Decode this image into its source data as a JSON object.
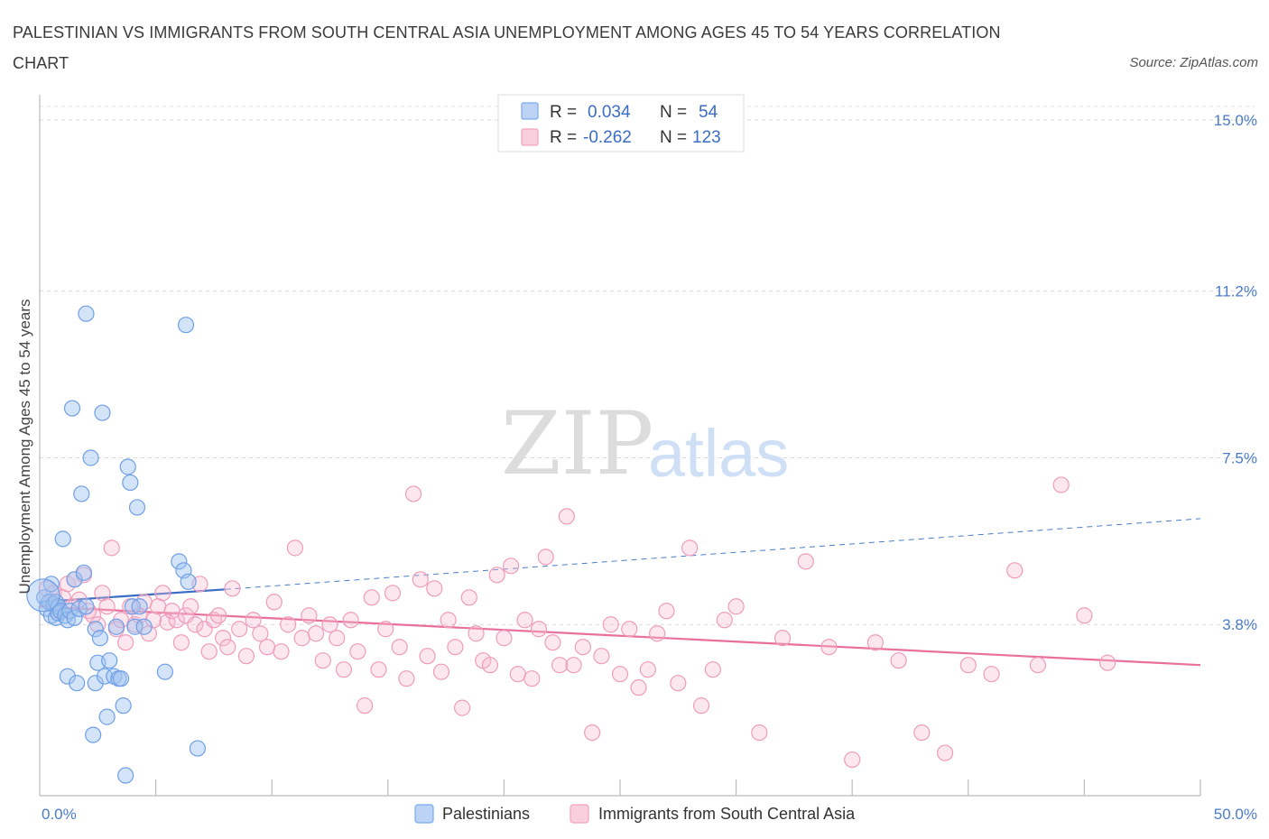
{
  "title": "PALESTINIAN VS IMMIGRANTS FROM SOUTH CENTRAL ASIA UNEMPLOYMENT AMONG AGES 45 TO 54 YEARS CORRELATION CHART",
  "source": "Source: ZipAtlas.com",
  "watermark": {
    "zip": "ZIP",
    "atlas": "atlas"
  },
  "stats": [
    {
      "r_label": "R =",
      "r_value": "0.034",
      "n_label": "N =",
      "n_value": "54"
    },
    {
      "r_label": "R =",
      "r_value": "-0.262",
      "n_label": "N =",
      "n_value": "123"
    }
  ],
  "chart_data": {
    "type": "scatter",
    "title": "PALESTINIAN VS IMMIGRANTS FROM SOUTH CENTRAL ASIA UNEMPLOYMENT AMONG AGES 45 TO 54 YEARS CORRELATION CHART",
    "xlabel": "",
    "ylabel": "Unemployment Among Ages 45 to 54 years",
    "xlim": [
      0,
      50
    ],
    "ylim": [
      0,
      15.3
    ],
    "x_tick_labels": [
      "0.0%",
      "50.0%"
    ],
    "y_ticks": [
      3.8,
      7.5,
      11.2,
      15.0
    ],
    "y_tick_labels": [
      "3.8%",
      "7.5%",
      "11.2%",
      "15.0%"
    ],
    "grid": true,
    "legend_position": "bottom",
    "series": [
      {
        "name": "Palestinians",
        "color": "#7aaaf0",
        "r": 0.034,
        "n": 54,
        "trend": {
          "x0": 0,
          "y0": 4.3,
          "x1": 8.0,
          "y1": 4.58,
          "x_end": 50,
          "y_end": 6.15
        },
        "x": [
          0.2,
          0.3,
          0.4,
          0.5,
          0.5,
          0.6,
          0.7,
          0.7,
          0.8,
          0.8,
          0.9,
          1.0,
          1.1,
          1.2,
          1.2,
          1.3,
          1.4,
          1.5,
          1.5,
          1.6,
          1.7,
          1.8,
          1.9,
          2.0,
          2.0,
          2.2,
          2.3,
          2.4,
          2.4,
          2.5,
          2.6,
          2.7,
          2.8,
          2.9,
          3.0,
          3.2,
          3.3,
          3.4,
          3.5,
          3.6,
          3.7,
          3.8,
          3.9,
          4.0,
          4.1,
          4.2,
          4.3,
          4.5,
          5.4,
          6.0,
          6.2,
          6.3,
          6.4,
          6.8
        ],
        "y": [
          4.4,
          4.15,
          4.3,
          4.0,
          4.7,
          4.25,
          3.95,
          4.3,
          4.2,
          4.05,
          4.1,
          5.7,
          4.0,
          3.9,
          2.65,
          4.1,
          8.6,
          3.95,
          4.8,
          2.5,
          4.15,
          6.7,
          4.95,
          4.2,
          10.7,
          7.5,
          1.35,
          3.7,
          2.5,
          2.95,
          3.5,
          8.5,
          2.65,
          1.75,
          3.0,
          2.65,
          3.75,
          2.6,
          2.6,
          2.0,
          0.45,
          7.3,
          6.95,
          4.2,
          3.75,
          6.4,
          4.2,
          3.75,
          2.75,
          5.2,
          5.0,
          10.45,
          4.75,
          1.05
        ]
      },
      {
        "name": "Immigrants from South Central Asia",
        "color": "#f4a3bf",
        "r": -0.262,
        "n": 123,
        "trend": {
          "x0": 0,
          "y0": 4.2,
          "x1": 50,
          "y1": 2.9
        },
        "x": [
          0.3,
          0.5,
          0.6,
          0.8,
          1.0,
          1.2,
          1.4,
          1.5,
          1.7,
          1.9,
          2.1,
          2.3,
          2.5,
          2.7,
          2.9,
          3.1,
          3.3,
          3.5,
          3.7,
          3.9,
          4.1,
          4.3,
          4.5,
          4.7,
          4.9,
          5.1,
          5.3,
          5.5,
          5.7,
          5.9,
          6.1,
          6.3,
          6.5,
          6.7,
          6.9,
          7.1,
          7.3,
          7.5,
          7.7,
          7.9,
          8.1,
          8.3,
          8.6,
          8.9,
          9.2,
          9.5,
          9.8,
          10.1,
          10.4,
          10.7,
          11.0,
          11.3,
          11.6,
          11.9,
          12.2,
          12.5,
          12.8,
          13.1,
          13.4,
          13.7,
          14.0,
          14.3,
          14.6,
          14.9,
          15.2,
          15.5,
          15.8,
          16.1,
          16.4,
          16.7,
          17.0,
          17.3,
          17.6,
          17.9,
          18.2,
          18.5,
          18.8,
          19.1,
          19.4,
          19.7,
          20.0,
          20.3,
          20.6,
          20.9,
          21.2,
          21.5,
          21.8,
          22.1,
          22.4,
          22.7,
          23.0,
          23.4,
          23.8,
          24.2,
          24.6,
          25.0,
          25.4,
          25.8,
          26.2,
          26.6,
          27.0,
          27.5,
          28.0,
          28.5,
          29.0,
          29.5,
          30.0,
          31.0,
          32.0,
          33.0,
          34.0,
          35.0,
          36.0,
          37.0,
          38.0,
          39.0,
          40.0,
          41.0,
          42.0,
          43.0,
          44.0,
          45.0,
          46.0
        ],
        "y": [
          4.6,
          4.3,
          4.5,
          4.1,
          4.4,
          4.7,
          4.2,
          4.8,
          4.35,
          4.9,
          4.1,
          4.0,
          3.8,
          4.5,
          4.2,
          5.5,
          3.7,
          3.9,
          3.4,
          4.2,
          3.8,
          4.0,
          4.3,
          3.6,
          3.9,
          4.2,
          4.5,
          3.85,
          4.1,
          3.9,
          3.4,
          4.0,
          4.2,
          3.8,
          4.7,
          3.7,
          3.2,
          3.9,
          4.0,
          3.5,
          3.3,
          4.6,
          3.7,
          3.1,
          3.9,
          3.6,
          3.3,
          4.3,
          3.2,
          3.8,
          5.5,
          3.5,
          4.0,
          3.6,
          3.0,
          3.8,
          3.5,
          2.8,
          3.9,
          3.2,
          2.0,
          4.4,
          2.8,
          3.7,
          4.5,
          3.3,
          2.6,
          6.7,
          4.8,
          3.1,
          4.6,
          2.75,
          3.9,
          3.3,
          1.95,
          4.4,
          3.6,
          3.0,
          2.9,
          4.9,
          3.5,
          5.1,
          2.7,
          3.9,
          2.6,
          3.7,
          5.3,
          3.4,
          2.9,
          6.2,
          2.9,
          3.3,
          1.4,
          3.1,
          3.8,
          2.7,
          3.7,
          2.4,
          2.8,
          3.6,
          4.1,
          2.5,
          5.5,
          2.0,
          2.8,
          3.9,
          4.2,
          1.4,
          3.5,
          5.2,
          3.3,
          0.8,
          3.4,
          3.0,
          1.4,
          0.95,
          2.9,
          2.7,
          5.0,
          2.9,
          6.9,
          4.0,
          2.95
        ]
      }
    ]
  }
}
